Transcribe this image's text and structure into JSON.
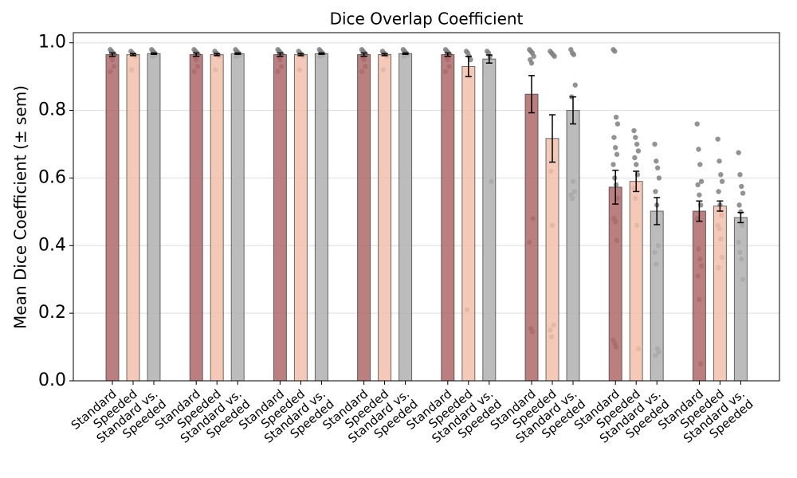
{
  "chart_data": {
    "type": "bar",
    "title": "Dice Overlap Coefficient",
    "ylabel": "Mean Dice Coefficient (± sem)",
    "categories": [
      "Standard",
      "Speeded",
      "Standard vs.\nSpeeded",
      "Standard",
      "Speeded",
      "Standard vs.\nSpeeded",
      "Standard",
      "Speeded",
      "Standard vs.\nSpeeded",
      "Standard",
      "Speeded",
      "Standard vs.\nSpeeded",
      "Standard",
      "Speeded",
      "Standard vs.\nSpeeded",
      "Standard",
      "Speeded",
      "Standard vs.\nSpeeded",
      "Standard",
      "Speeded",
      "Standard vs.\nSpeeded",
      "Standard",
      "Speeded",
      "Standard vs.\nSpeeded"
    ],
    "values": [
      0.965,
      0.965,
      0.968,
      0.965,
      0.965,
      0.968,
      0.965,
      0.965,
      0.968,
      0.965,
      0.965,
      0.968,
      0.965,
      0.93,
      0.952,
      0.848,
      0.717,
      0.8,
      0.573,
      0.59,
      0.502,
      0.502,
      0.517,
      0.483
    ],
    "errors": [
      0.005,
      0.003,
      0.002,
      0.005,
      0.003,
      0.002,
      0.005,
      0.003,
      0.002,
      0.005,
      0.003,
      0.002,
      0.005,
      0.03,
      0.012,
      0.055,
      0.07,
      0.04,
      0.05,
      0.03,
      0.04,
      0.03,
      0.015,
      0.015
    ],
    "colors": [
      "#b06868",
      "#f2c0aa",
      "#b0b0b0",
      "#b06868",
      "#f2c0aa",
      "#b0b0b0",
      "#b06868",
      "#f2c0aa",
      "#b0b0b0",
      "#b06868",
      "#f2c0aa",
      "#b0b0b0",
      "#b06868",
      "#f2c0aa",
      "#b0b0b0",
      "#b06868",
      "#f2c0aa",
      "#b0b0b0",
      "#b06868",
      "#f2c0aa",
      "#b0b0b0",
      "#b06868",
      "#f2c0aa",
      "#b0b0b0"
    ],
    "point_color": "#808080",
    "points": [
      [
        0.98,
        0.975,
        0.97,
        0.965,
        0.96,
        0.95,
        0.93,
        0.915
      ],
      [
        0.975,
        0.97,
        0.965,
        0.96,
        0.92
      ],
      [
        0.98,
        0.975,
        0.97,
        0.965,
        0.96
      ],
      [
        0.98,
        0.975,
        0.97,
        0.965,
        0.96,
        0.95,
        0.93,
        0.915
      ],
      [
        0.975,
        0.97,
        0.965,
        0.96,
        0.92
      ],
      [
        0.98,
        0.975,
        0.97,
        0.965,
        0.96
      ],
      [
        0.98,
        0.975,
        0.97,
        0.965,
        0.96,
        0.95,
        0.93,
        0.915
      ],
      [
        0.975,
        0.97,
        0.965,
        0.96,
        0.92
      ],
      [
        0.98,
        0.975,
        0.97,
        0.965,
        0.96
      ],
      [
        0.98,
        0.975,
        0.97,
        0.965,
        0.96,
        0.95,
        0.93,
        0.915
      ],
      [
        0.975,
        0.97,
        0.965,
        0.96,
        0.92
      ],
      [
        0.98,
        0.975,
        0.97,
        0.965,
        0.96
      ],
      [
        0.98,
        0.975,
        0.97,
        0.965,
        0.96,
        0.95,
        0.93,
        0.915
      ],
      [
        0.975,
        0.97,
        0.96,
        0.95,
        0.21
      ],
      [
        0.975,
        0.97,
        0.96,
        0.59
      ],
      [
        0.98,
        0.975,
        0.97,
        0.96,
        0.95,
        0.94,
        0.48,
        0.41,
        0.155,
        0.145
      ],
      [
        0.975,
        0.97,
        0.965,
        0.96,
        0.62,
        0.46,
        0.165,
        0.15,
        0.13
      ],
      [
        0.98,
        0.97,
        0.965,
        0.875,
        0.84,
        0.59,
        0.56,
        0.55,
        0.54
      ],
      [
        0.98,
        0.975,
        0.78,
        0.76,
        0.72,
        0.69,
        0.67,
        0.64,
        0.6,
        0.58,
        0.54,
        0.48,
        0.47,
        0.415,
        0.12,
        0.11,
        0.1
      ],
      [
        0.74,
        0.72,
        0.7,
        0.68,
        0.66,
        0.64,
        0.61,
        0.57,
        0.54,
        0.46,
        0.095
      ],
      [
        0.7,
        0.65,
        0.63,
        0.6,
        0.56,
        0.52,
        0.4,
        0.38,
        0.345,
        0.095,
        0.085,
        0.075
      ],
      [
        0.76,
        0.685,
        0.64,
        0.59,
        0.58,
        0.55,
        0.52,
        0.48,
        0.39,
        0.36,
        0.34,
        0.31,
        0.24,
        0.05
      ],
      [
        0.715,
        0.65,
        0.61,
        0.59,
        0.56,
        0.52,
        0.49,
        0.46,
        0.45,
        0.42,
        0.365,
        0.335
      ],
      [
        0.675,
        0.61,
        0.575,
        0.555,
        0.52,
        0.5,
        0.46,
        0.41,
        0.38,
        0.36,
        0.3
      ]
    ],
    "ylim": [
      0,
      1.03
    ],
    "yticks": [
      {
        "value": 0,
        "label": "0.0"
      },
      0.2,
      0.4,
      0.6,
      0.8,
      {
        "value": 1,
        "label": "1.0"
      }
    ],
    "grid": true
  }
}
